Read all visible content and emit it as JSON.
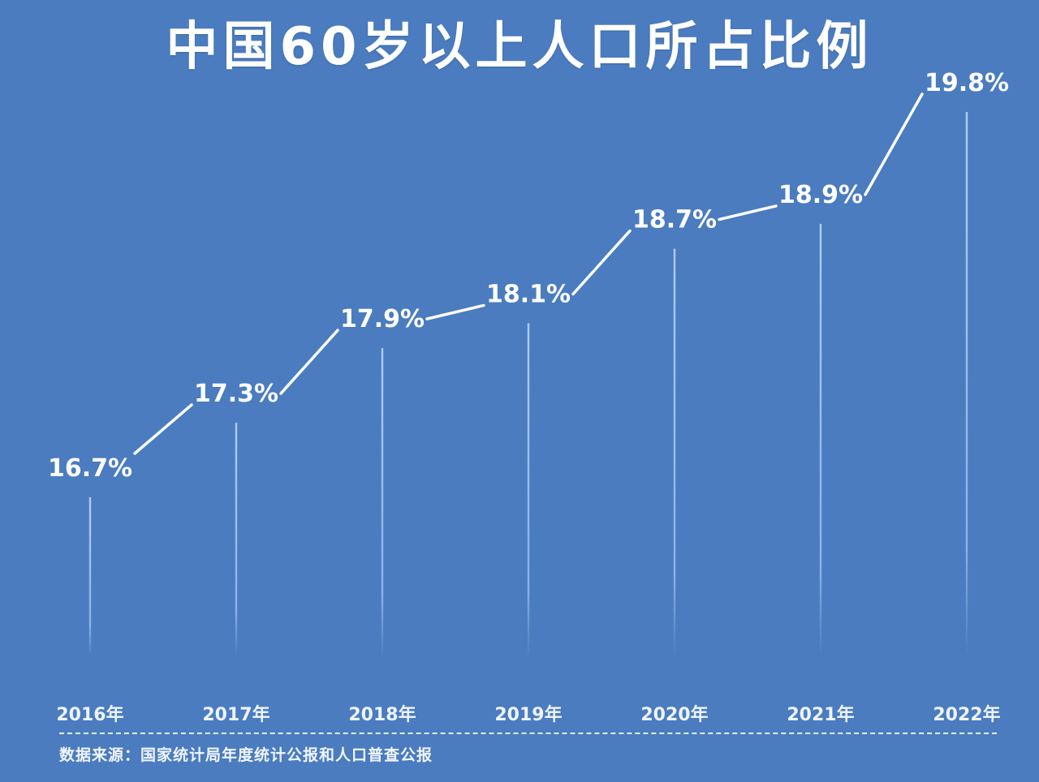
{
  "title": "中国60岁以上人口所占比例",
  "source": "数据来源：国家统计局年度统计公报和人口普查公报",
  "colors": {
    "background": "#4a7cbf",
    "text": "#ffffff",
    "connector": "#ffffff",
    "stem": "#a9c8f5"
  },
  "chart_data": {
    "type": "line",
    "title": "中国60岁以上人口所占比例",
    "xlabel": "",
    "ylabel": "",
    "categories": [
      "2016年",
      "2017年",
      "2018年",
      "2019年",
      "2020年",
      "2021年",
      "2022年"
    ],
    "values": [
      16.7,
      17.3,
      17.9,
      18.1,
      18.7,
      18.9,
      19.8
    ],
    "value_labels": [
      "16.7%",
      "17.3%",
      "17.9%",
      "18.1%",
      "18.7%",
      "18.9%",
      "19.8%"
    ],
    "unit": "%",
    "grid": false,
    "legend": null,
    "annotations": [
      "数据来源：国家统计局年度统计公报和人口普查公报"
    ]
  }
}
